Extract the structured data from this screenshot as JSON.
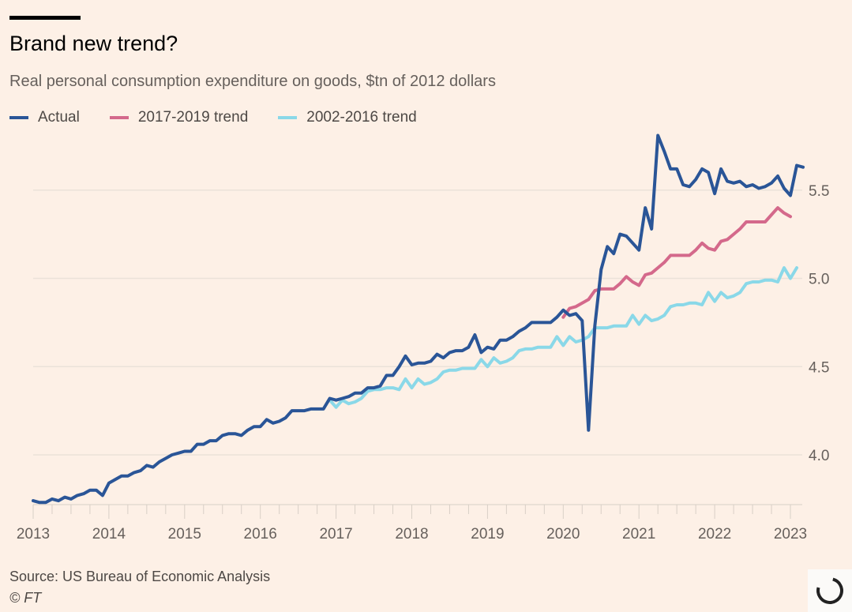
{
  "header": {
    "title": "Brand new trend?",
    "subtitle": "Real personal consumption expenditure on goods, $tn of 2012 dollars"
  },
  "footer": {
    "source": "Source: US Bureau of Economic Analysis",
    "copyright": "© FT"
  },
  "colors": {
    "background": "#fdf0e6",
    "actual": "#2a5597",
    "trend_2017_2019": "#d4698b",
    "trend_2002_2016": "#8ad8e8",
    "gridline": "#ebe2d9",
    "axis_text": "#66605c"
  },
  "chart_data": {
    "type": "line",
    "title": "Brand new trend?",
    "subtitle": "Real personal consumption expenditure on goods, $tn of 2012 dollars",
    "xlabel": "",
    "ylabel": "",
    "xlim": [
      2013,
      2023.1
    ],
    "ylim": [
      3.72,
      5.85
    ],
    "x_ticks": [
      "2013",
      "2014",
      "2015",
      "2016",
      "2017",
      "2018",
      "2019",
      "2020",
      "2021",
      "2022",
      "2023"
    ],
    "y_ticks": [
      "4.0",
      "4.5",
      "5.0",
      "5.5"
    ],
    "y_tick_values": [
      4.0,
      4.5,
      5.0,
      5.5
    ],
    "grid": true,
    "legend_position": "top-left",
    "series": [
      {
        "name": "Actual",
        "key": "actual",
        "start": 2013.0,
        "step_months": 1,
        "values": [
          3.74,
          3.73,
          3.73,
          3.75,
          3.74,
          3.76,
          3.75,
          3.77,
          3.78,
          3.8,
          3.8,
          3.77,
          3.84,
          3.86,
          3.88,
          3.88,
          3.9,
          3.91,
          3.94,
          3.93,
          3.96,
          3.98,
          4.0,
          4.01,
          4.02,
          4.02,
          4.06,
          4.06,
          4.08,
          4.08,
          4.11,
          4.12,
          4.12,
          4.11,
          4.14,
          4.16,
          4.16,
          4.2,
          4.18,
          4.19,
          4.21,
          4.25,
          4.25,
          4.25,
          4.26,
          4.26,
          4.26,
          4.32,
          4.31,
          4.32,
          4.33,
          4.35,
          4.35,
          4.38,
          4.38,
          4.39,
          4.45,
          4.45,
          4.5,
          4.56,
          4.51,
          4.52,
          4.52,
          4.53,
          4.57,
          4.55,
          4.58,
          4.59,
          4.59,
          4.61,
          4.68,
          4.58,
          4.61,
          4.6,
          4.65,
          4.65,
          4.67,
          4.7,
          4.72,
          4.75,
          4.75,
          4.75,
          4.75,
          4.78,
          4.82,
          4.79,
          4.8,
          4.76,
          4.14,
          4.73,
          5.05,
          5.18,
          5.14,
          5.25,
          5.24,
          5.2,
          5.16,
          5.4,
          5.28,
          5.81,
          5.72,
          5.62,
          5.62,
          5.53,
          5.52,
          5.56,
          5.62,
          5.6,
          5.48,
          5.62,
          5.55,
          5.54,
          5.55,
          5.52,
          5.53,
          5.51,
          5.52,
          5.54,
          5.58,
          5.51,
          5.47,
          5.64,
          5.63
        ]
      },
      {
        "name": "2017-2019 trend",
        "key": "trend_2017_2019",
        "start": 2020.0,
        "step_months": 1,
        "values": [
          4.78,
          4.83,
          4.84,
          4.86,
          4.88,
          4.93,
          4.94,
          4.94,
          4.94,
          4.97,
          5.01,
          4.98,
          4.96,
          5.02,
          5.03,
          5.06,
          5.09,
          5.13,
          5.13,
          5.13,
          5.13,
          5.16,
          5.2,
          5.17,
          5.16,
          5.21,
          5.22,
          5.25,
          5.28,
          5.32,
          5.32,
          5.32,
          5.32,
          5.36,
          5.4,
          5.37,
          5.35
        ]
      },
      {
        "name": "2002-2016 trend",
        "key": "trend_2002_2016",
        "start": 2016.917,
        "step_months": 1,
        "values": [
          4.31,
          4.27,
          4.31,
          4.29,
          4.3,
          4.32,
          4.36,
          4.37,
          4.37,
          4.38,
          4.38,
          4.37,
          4.43,
          4.38,
          4.43,
          4.4,
          4.41,
          4.43,
          4.47,
          4.48,
          4.48,
          4.49,
          4.49,
          4.49,
          4.54,
          4.5,
          4.55,
          4.52,
          4.53,
          4.55,
          4.59,
          4.6,
          4.6,
          4.61,
          4.61,
          4.61,
          4.67,
          4.62,
          4.67,
          4.64,
          4.65,
          4.67,
          4.72,
          4.72,
          4.72,
          4.73,
          4.73,
          4.73,
          4.79,
          4.74,
          4.79,
          4.76,
          4.77,
          4.79,
          4.84,
          4.85,
          4.85,
          4.86,
          4.86,
          4.85,
          4.92,
          4.87,
          4.92,
          4.89,
          4.9,
          4.92,
          4.97,
          4.98,
          4.98,
          4.99,
          4.99,
          4.98,
          5.06,
          5.0,
          5.06
        ]
      }
    ]
  },
  "legend": [
    {
      "label": "Actual",
      "color": "#2a5597"
    },
    {
      "label": "2017-2019 trend",
      "color": "#d4698b"
    },
    {
      "label": "2002-2016 trend",
      "color": "#8ad8e8"
    }
  ]
}
